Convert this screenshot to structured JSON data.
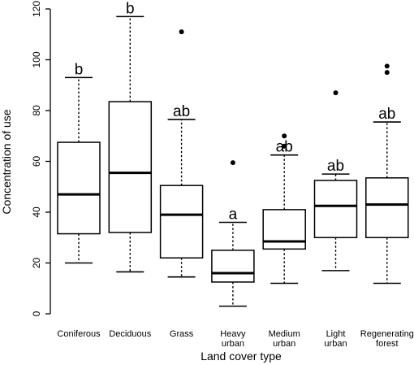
{
  "chart_data": {
    "type": "box",
    "title": "",
    "xlabel": "Land cover type",
    "ylabel": "Concentration of use",
    "ylim": [
      0,
      120
    ],
    "yticks": [
      0,
      20,
      40,
      60,
      80,
      100,
      120
    ],
    "grid": false,
    "categories": [
      {
        "label_lines": [
          "Coniferous"
        ],
        "letter": "b",
        "whisker_low": 20,
        "q1": 31.5,
        "median": 47,
        "q3": 67.5,
        "whisker_high": 93,
        "outliers": []
      },
      {
        "label_lines": [
          "Deciduous"
        ],
        "letter": "b",
        "whisker_low": 16.5,
        "q1": 32,
        "median": 55.5,
        "q3": 83.5,
        "whisker_high": 117,
        "outliers": []
      },
      {
        "label_lines": [
          "Grass"
        ],
        "letter": "ab",
        "whisker_low": 14.5,
        "q1": 22,
        "median": 39,
        "q3": 50.5,
        "whisker_high": 76.5,
        "outliers": [
          111
        ]
      },
      {
        "label_lines": [
          "Heavy",
          "urban"
        ],
        "letter": "a",
        "whisker_low": 3,
        "q1": 12.5,
        "median": 16,
        "q3": 25,
        "whisker_high": 36,
        "outliers": [
          59.5
        ]
      },
      {
        "label_lines": [
          "Medium",
          "urban"
        ],
        "letter": "ab",
        "whisker_low": 12,
        "q1": 25.5,
        "median": 28.5,
        "q3": 41,
        "whisker_high": 62.5,
        "outliers": [
          66,
          70
        ]
      },
      {
        "label_lines": [
          "Light",
          "urban"
        ],
        "letter": "ab",
        "whisker_low": 17,
        "q1": 30,
        "median": 42.5,
        "q3": 52.5,
        "whisker_high": 55,
        "outliers": [
          87
        ]
      },
      {
        "label_lines": [
          "Regenerating",
          "forest"
        ],
        "letter": "ab",
        "whisker_low": 12,
        "q1": 30,
        "median": 43,
        "q3": 53.5,
        "whisker_high": 75.5,
        "outliers": [
          95,
          97.5
        ]
      }
    ]
  }
}
